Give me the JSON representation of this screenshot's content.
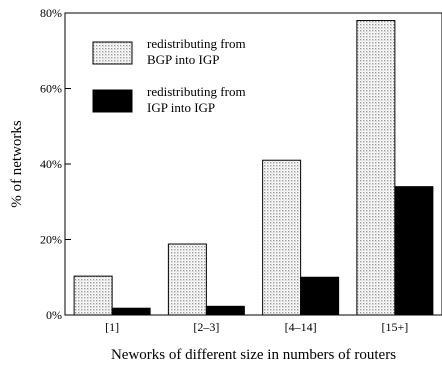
{
  "chart_data": {
    "type": "bar",
    "xlabel": "Neworks of different size in numbers of routers",
    "ylabel": "% of networks",
    "ylim": [
      0,
      80
    ],
    "yticks": [
      0,
      20,
      40,
      60,
      80
    ],
    "ytick_labels": [
      "0%",
      "20%",
      "40%",
      "60%",
      "80%"
    ],
    "categories": [
      "[1]",
      "[2–3]",
      "[4–14]",
      "[15+]"
    ],
    "series": [
      {
        "name": "redistributing from BGP into IGP",
        "name_lines": [
          "redistributing from",
          "BGP into IGP"
        ],
        "fill": "dotted",
        "values": [
          10.3,
          18.8,
          41.0,
          78.0
        ]
      },
      {
        "name": "redistributing from IGP into IGP",
        "name_lines": [
          "redistributing from",
          "IGP into IGP"
        ],
        "fill": "#000000",
        "values": [
          1.8,
          2.3,
          10.0,
          34.0
        ]
      }
    ],
    "legend_position": "top-left",
    "grid": false
  }
}
